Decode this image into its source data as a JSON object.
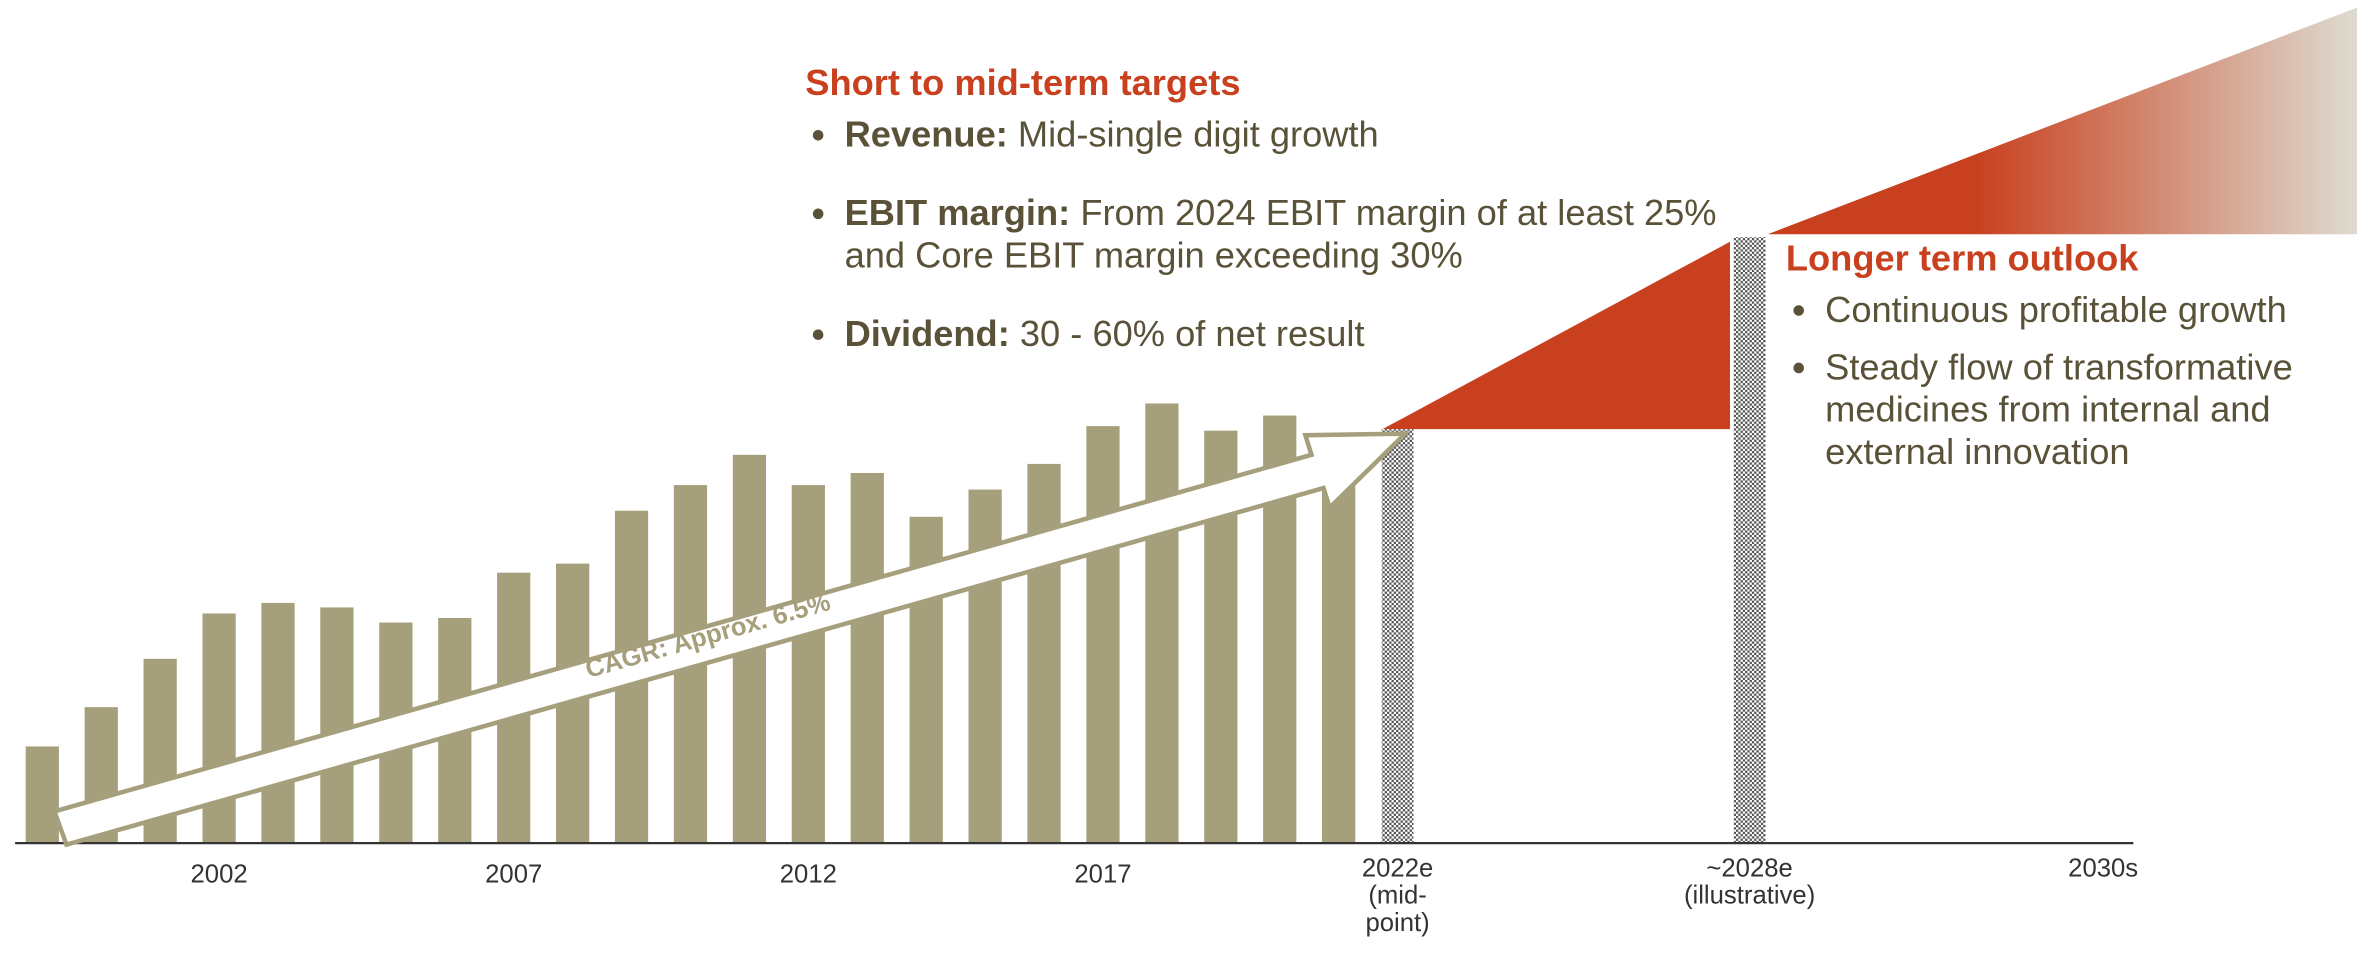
{
  "chart_data": {
    "type": "bar",
    "categories": [
      null,
      null,
      null,
      "2002",
      null,
      null,
      null,
      null,
      "2007",
      null,
      null,
      null,
      null,
      "2012",
      null,
      null,
      null,
      null,
      "2017",
      null,
      null,
      null,
      null,
      "2022e (mid-point)",
      "~2028e (illustrative)",
      "2030s"
    ],
    "values": [
      64,
      90,
      122,
      152,
      159,
      156,
      146,
      149,
      179,
      185,
      220,
      237,
      257,
      237,
      245,
      216,
      234,
      251,
      276,
      291,
      273,
      283,
      260,
      274,
      401,
      null
    ],
    "color": "#a69f7c",
    "hatched_color": "#555555",
    "ylim": [
      0,
      558
    ],
    "annotations": {
      "cagr": "CAGR: Approx. 6.5%"
    }
  },
  "short_term": {
    "title": "Short to mid-term targets",
    "items": [
      {
        "label": "Revenue:",
        "text": "Mid-single digit growth"
      },
      {
        "label": "EBIT margin:",
        "text": "From 2024 EBIT margin of at least 25% and Core EBIT margin exceeding 30%"
      },
      {
        "label": "Dividend:",
        "text": "30 - 60% of net result"
      }
    ]
  },
  "long_term": {
    "title": "Longer term outlook",
    "items": [
      "Continuous profitable growth",
      "Steady flow of transformative medicines from internal and external innovation"
    ]
  }
}
